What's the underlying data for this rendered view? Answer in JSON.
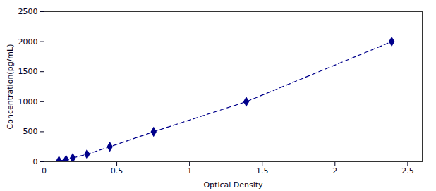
{
  "chart_data": {
    "type": "line",
    "x": [
      0.102,
      0.151,
      0.197,
      0.295,
      0.452,
      0.753,
      1.39,
      2.39
    ],
    "values": [
      15.6,
      31.2,
      62.5,
      125.0,
      250.0,
      500.0,
      1000.0,
      2000.0
    ],
    "color": "#00008B",
    "marker": "diamond",
    "line_style": "dashed",
    "xlabel": "Optical Density",
    "ylabel": "Concentration(pg/mL)",
    "xlim": [
      0.0,
      2.6
    ],
    "ylim": [
      0,
      2500
    ],
    "xticks": [
      0,
      0.5,
      1,
      1.5,
      2,
      2.5
    ],
    "yticks": [
      0,
      500,
      1000,
      1500,
      2000,
      2500
    ]
  }
}
